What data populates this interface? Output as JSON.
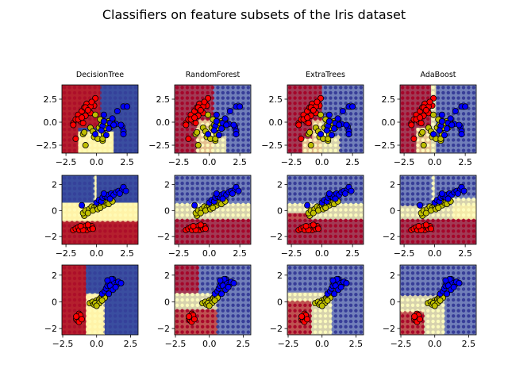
{
  "chart_data": {
    "type": "scatter",
    "title": "Classifiers on feature subsets of the Iris dataset",
    "classifiers": [
      "DecisionTree",
      "RandomForest",
      "ExtraTrees",
      "AdaBoost"
    ],
    "class_colors": {
      "region": [
        "#b5202e",
        "#fff3a8",
        "#3a4ea0"
      ],
      "grid_dot": [
        "#a50026",
        "#ffffbf",
        "#313695"
      ],
      "point": [
        "#ff0000",
        "#bfbf00",
        "#0000ff"
      ]
    },
    "rows": [
      {
        "xlim": [
          -2.83,
          3.4
        ],
        "ylim": [
          -3.36,
          4.05
        ],
        "xticks": [
          -2.5,
          0,
          2.5
        ],
        "xticklabels": [
          "−2.5",
          "0.0",
          "2.5"
        ],
        "yticks": [
          -2.5,
          0,
          2.5
        ],
        "yticklabels": [
          "−2.5",
          "0.0",
          "2.5"
        ],
        "points": [
          [
            [
              -1.9,
              -0.1
            ],
            [
              -1.5,
              0.8
            ],
            [
              -1.2,
              1.2
            ],
            [
              -1.0,
              1.6
            ],
            [
              -0.8,
              2.0
            ],
            [
              -0.5,
              1.0
            ],
            [
              -0.2,
              1.8
            ],
            [
              -0.1,
              2.6
            ],
            [
              -1.7,
              0.3
            ],
            [
              -1.3,
              0.1
            ],
            [
              -0.9,
              0.7
            ],
            [
              -0.5,
              1.7
            ],
            [
              -1.1,
              -0.1
            ],
            [
              -1.5,
              0.3
            ],
            [
              -1.7,
              -1.8
            ],
            [
              -0.4,
              2.2
            ],
            [
              -0.9,
              1.6
            ],
            [
              -1.2,
              0.5
            ],
            [
              -0.7,
              1.3
            ],
            [
              -1.9,
              -0.3
            ]
          ],
          [
            [
              -1.1,
              -1.3
            ],
            [
              -0.9,
              -2.5
            ],
            [
              -0.5,
              -0.6
            ],
            [
              -0.3,
              -1.0
            ],
            [
              0.2,
              -0.6
            ],
            [
              0.4,
              -0.3
            ],
            [
              0.6,
              -1.3
            ],
            [
              0.8,
              -0.3
            ],
            [
              1.0,
              0.1
            ],
            [
              1.3,
              0.3
            ],
            [
              -0.2,
              -1.6
            ],
            [
              0.1,
              -1.8
            ],
            [
              0.5,
              -2.0
            ],
            [
              0.7,
              -0.6
            ],
            [
              -0.1,
              0.8
            ],
            [
              -1.0,
              -1.1
            ],
            [
              0.3,
              0.3
            ],
            [
              0.9,
              -0.1
            ],
            [
              1.1,
              -0.6
            ],
            [
              0.5,
              -1.8
            ]
          ],
          [
            [
              0.6,
              0.8
            ],
            [
              0.5,
              -0.4
            ],
            [
              1.1,
              -0.1
            ],
            [
              1.6,
              -0.2
            ],
            [
              1.7,
              1.2
            ],
            [
              2.2,
              1.7
            ],
            [
              2.5,
              1.7
            ],
            [
              2.1,
              -0.5
            ],
            [
              2.2,
              -1.0
            ],
            [
              2.2,
              -1.3
            ],
            [
              1.4,
              -0.3
            ],
            [
              0.8,
              -1.4
            ],
            [
              -0.1,
              -1.3
            ],
            [
              1.0,
              -0.7
            ],
            [
              0.6,
              0.1
            ],
            [
              1.3,
              0.4
            ],
            [
              2.0,
              -0.3
            ],
            [
              0.4,
              -0.9
            ]
          ]
        ],
        "regions": [
          [
            [
              -9,
              9,
              -9,
              9,
              2
            ],
            [
              -9,
              -1.5,
              -9,
              9,
              0
            ],
            [
              -1.5,
              0.3,
              -0.6,
              9,
              0
            ],
            [
              -1.5,
              1.4,
              -9,
              -1.0,
              1
            ],
            [
              0.3,
              1.4,
              -1.0,
              9,
              2
            ]
          ],
          [
            [
              -9,
              9,
              -9,
              9,
              2
            ],
            [
              -9,
              0.3,
              -9,
              9,
              0
            ],
            [
              -1.0,
              0.3,
              -9,
              0.3,
              1
            ],
            [
              0.3,
              1.4,
              -9,
              -1.5,
              1
            ]
          ],
          [
            [
              -9,
              9,
              -9,
              9,
              2
            ],
            [
              -9,
              0.0,
              -9,
              9,
              0
            ],
            [
              -0.8,
              0.6,
              -9,
              0.3,
              1
            ],
            [
              -1.6,
              -0.8,
              -9,
              -1.8,
              1
            ],
            [
              0.6,
              1.5,
              -9,
              -1.4,
              1
            ]
          ],
          [
            [
              -9,
              9,
              -9,
              9,
              2
            ],
            [
              -9,
              -0.3,
              -9,
              9,
              0
            ],
            [
              -0.3,
              0.1,
              -9,
              9,
              1
            ],
            [
              -1.5,
              -0.3,
              -9,
              -0.6,
              1
            ]
          ]
        ]
      },
      {
        "xlim": [
          -2.83,
          3.4
        ],
        "ylim": [
          -2.6,
          2.7
        ],
        "xticks": [
          -2.5,
          0,
          2.5
        ],
        "xticklabels": [
          "−2.5",
          "0.0",
          "2.5"
        ],
        "yticks": [
          -2,
          0,
          2
        ],
        "yticklabels": [
          "−2",
          "0",
          "2"
        ],
        "points": [
          [
            [
              -1.9,
              -1.5
            ],
            [
              -1.7,
              -1.4
            ],
            [
              -1.5,
              -1.3
            ],
            [
              -1.4,
              -1.5
            ],
            [
              -1.2,
              -1.3
            ],
            [
              -1.0,
              -1.4
            ],
            [
              -0.9,
              -1.2
            ],
            [
              -0.8,
              -1.5
            ],
            [
              -0.6,
              -1.3
            ],
            [
              -0.5,
              -1.4
            ],
            [
              -0.4,
              -1.2
            ],
            [
              -0.3,
              -1.4
            ],
            [
              -1.1,
              -1.5
            ],
            [
              -1.3,
              -1.2
            ],
            [
              -0.7,
              -1.1
            ]
          ],
          [
            [
              -1.0,
              -0.4
            ],
            [
              -1.1,
              -0.2
            ],
            [
              -0.9,
              0.0
            ],
            [
              -0.6,
              0.1
            ],
            [
              -0.4,
              0.3
            ],
            [
              -0.2,
              0.2
            ],
            [
              0.0,
              0.4
            ],
            [
              0.2,
              0.3
            ],
            [
              0.4,
              0.5
            ],
            [
              0.6,
              0.4
            ],
            [
              0.8,
              0.6
            ],
            [
              1.0,
              0.5
            ],
            [
              1.3,
              0.7
            ],
            [
              -0.3,
              0.0
            ],
            [
              0.1,
              0.1
            ],
            [
              0.5,
              0.7
            ],
            [
              -0.7,
              -0.2
            ],
            [
              0.3,
              0.2
            ]
          ],
          [
            [
              -1.2,
              0.4
            ],
            [
              0.0,
              0.6
            ],
            [
              0.2,
              0.8
            ],
            [
              0.4,
              0.7
            ],
            [
              0.5,
              1.0
            ],
            [
              0.7,
              1.1
            ],
            [
              0.9,
              1.0
            ],
            [
              1.0,
              1.2
            ],
            [
              1.2,
              1.3
            ],
            [
              1.4,
              1.2
            ],
            [
              1.6,
              1.4
            ],
            [
              1.8,
              1.5
            ],
            [
              2.1,
              1.6
            ],
            [
              2.2,
              1.8
            ],
            [
              2.4,
              1.5
            ],
            [
              0.6,
              1.3
            ],
            [
              1.1,
              0.9
            ],
            [
              1.9,
              1.3
            ]
          ]
        ],
        "regions": [
          [
            [
              -9,
              9,
              -9,
              9,
              2
            ],
            [
              -9,
              9,
              -0.8,
              0.6,
              1
            ],
            [
              -9,
              9,
              -9,
              -0.8,
              0
            ],
            [
              -0.15,
              0.0,
              0.6,
              9,
              1
            ]
          ],
          [
            [
              -9,
              9,
              -9,
              9,
              2
            ],
            [
              -9,
              9,
              -0.7,
              0.5,
              1
            ],
            [
              -9,
              9,
              -9,
              -0.7,
              0
            ]
          ],
          [
            [
              -9,
              9,
              -9,
              9,
              2
            ],
            [
              -9,
              9,
              -0.7,
              0.5,
              1
            ],
            [
              -9,
              9,
              -9,
              -0.7,
              0
            ],
            [
              -9,
              -1.0,
              -0.7,
              -0.2,
              0
            ]
          ],
          [
            [
              -9,
              9,
              -9,
              9,
              2
            ],
            [
              -9,
              9,
              -0.7,
              0.4,
              1
            ],
            [
              1.5,
              9,
              -0.7,
              0.9,
              1
            ],
            [
              -9,
              9,
              -9,
              -0.7,
              0
            ],
            [
              -0.15,
              0.0,
              0.4,
              9,
              1
            ]
          ]
        ]
      },
      {
        "xlim": [
          -2.56,
          3.06
        ],
        "ylim": [
          -2.47,
          2.76
        ],
        "xticks": [
          -2.5,
          0,
          2.5
        ],
        "xticklabels": [
          "−2.5",
          "0.0",
          "2.5"
        ],
        "yticks": [
          -2,
          0,
          2
        ],
        "yticklabels": [
          "−2",
          "0",
          "2"
        ],
        "points": [
          [
            [
              -1.5,
              -1.3
            ],
            [
              -1.4,
              -1.1
            ],
            [
              -1.3,
              -1.3
            ],
            [
              -1.2,
              -1.2
            ],
            [
              -1.3,
              -0.9
            ],
            [
              -1.4,
              -1.4
            ],
            [
              -1.2,
              -1.0
            ],
            [
              -1.5,
              -1.1
            ],
            [
              -1.3,
              -1.5
            ],
            [
              -1.1,
              -1.3
            ]
          ],
          [
            [
              -0.5,
              -0.1
            ],
            [
              -0.3,
              0.0
            ],
            [
              -0.2,
              -0.2
            ],
            [
              0.0,
              0.1
            ],
            [
              0.1,
              0.0
            ],
            [
              0.2,
              0.2
            ],
            [
              0.3,
              0.3
            ],
            [
              0.4,
              0.4
            ],
            [
              0.5,
              0.5
            ],
            [
              0.6,
              0.3
            ],
            [
              -0.1,
              -0.1
            ],
            [
              0.2,
              -0.1
            ],
            [
              0.4,
              0.1
            ],
            [
              0.0,
              -0.3
            ]
          ],
          [
            [
              0.4,
              0.6
            ],
            [
              0.6,
              0.8
            ],
            [
              0.7,
              1.0
            ],
            [
              0.8,
              1.2
            ],
            [
              0.9,
              1.4
            ],
            [
              1.0,
              1.6
            ],
            [
              1.1,
              1.5
            ],
            [
              1.2,
              1.7
            ],
            [
              1.3,
              1.4
            ],
            [
              1.5,
              1.3
            ],
            [
              1.6,
              1.5
            ],
            [
              1.8,
              1.4
            ],
            [
              1.0,
              1.2
            ],
            [
              1.2,
              0.9
            ],
            [
              0.9,
              0.6
            ],
            [
              1.4,
              1.1
            ],
            [
              1.1,
              1.7
            ],
            [
              0.8,
              1.6
            ]
          ]
        ],
        "regions": [
          [
            [
              -9,
              9,
              -9,
              9,
              2
            ],
            [
              -0.8,
              0.6,
              -9,
              0.6,
              1
            ],
            [
              -9,
              -0.8,
              -9,
              9,
              0
            ]
          ],
          [
            [
              -9,
              9,
              -9,
              9,
              2
            ],
            [
              -9,
              0.6,
              -9,
              0.6,
              1
            ],
            [
              -9,
              0.6,
              -9,
              -0.6,
              0
            ],
            [
              -9,
              -0.8,
              0.6,
              9,
              0
            ]
          ],
          [
            [
              -9,
              9,
              -9,
              9,
              2
            ],
            [
              -9,
              0.7,
              -9,
              0.7,
              1
            ],
            [
              -9,
              -0.8,
              -9,
              0.1,
              0
            ]
          ],
          [
            [
              -9,
              9,
              -9,
              9,
              2
            ],
            [
              -9,
              0.7,
              -9,
              0.5,
              1
            ],
            [
              -9,
              -0.8,
              -9,
              -0.7,
              0
            ]
          ]
        ]
      }
    ]
  }
}
